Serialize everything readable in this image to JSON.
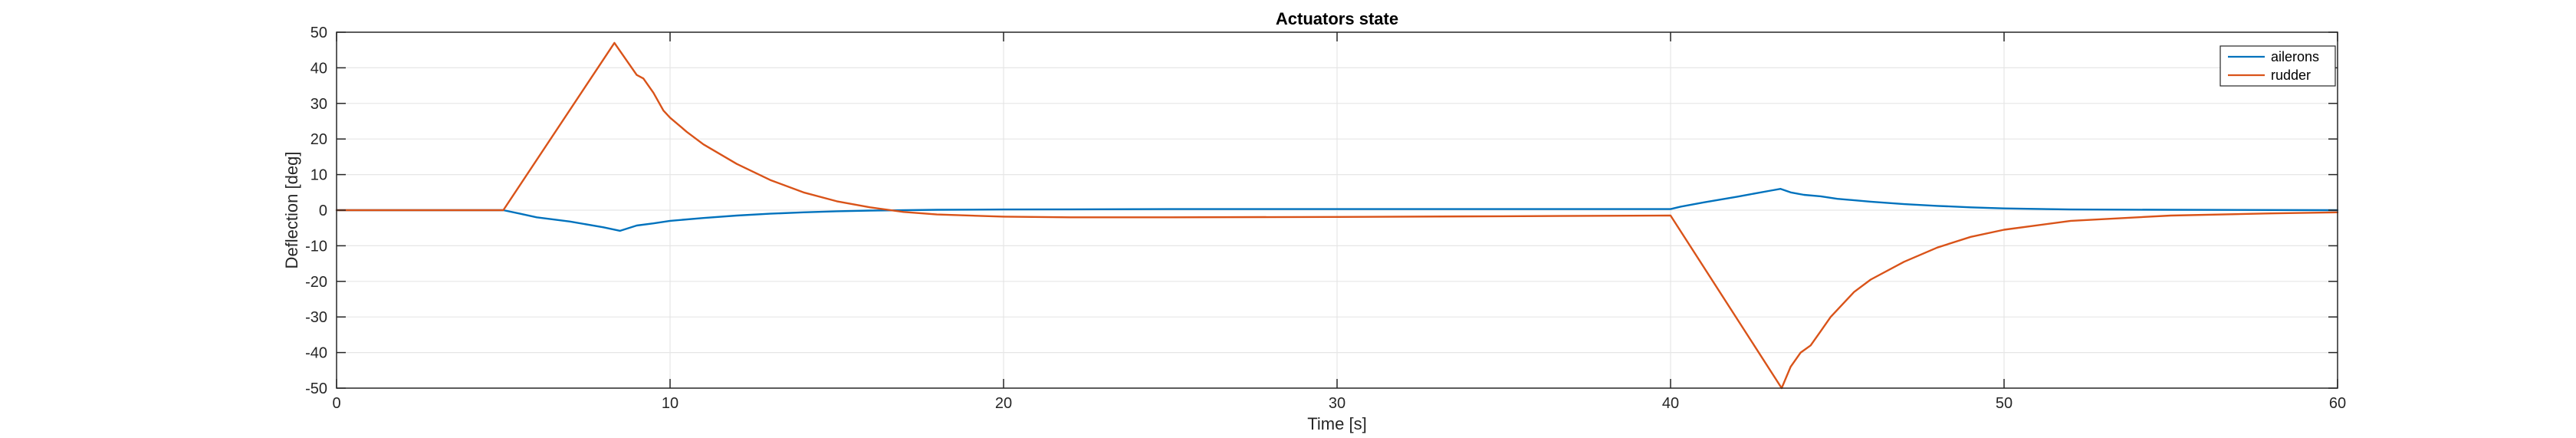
{
  "chart_data": {
    "type": "line",
    "title": "Actuators state",
    "xlabel": "Time [s]",
    "ylabel": "Deflection [deg]",
    "xlim": [
      0,
      60
    ],
    "ylim": [
      -50,
      50
    ],
    "x_ticks": [
      0,
      10,
      20,
      30,
      40,
      50,
      60
    ],
    "y_ticks": [
      -50,
      -40,
      -30,
      -20,
      -10,
      0,
      10,
      20,
      30,
      40,
      50
    ],
    "grid": true,
    "legend_position": "top-right",
    "colors": {
      "ailerons": "#0072BD",
      "rudder": "#D95319",
      "grid": "#e6e6e6",
      "axes": "#262626"
    },
    "series": [
      {
        "name": "ailerons",
        "color": "#0072BD",
        "points": [
          [
            0,
            0
          ],
          [
            5,
            0
          ],
          [
            5.5,
            -1
          ],
          [
            6,
            -2
          ],
          [
            7,
            -3.2
          ],
          [
            8,
            -4.8
          ],
          [
            8.5,
            -5.8
          ],
          [
            8.7,
            -5.2
          ],
          [
            9,
            -4.3
          ],
          [
            9.5,
            -3.7
          ],
          [
            10,
            -3.0
          ],
          [
            11,
            -2.2
          ],
          [
            12,
            -1.5
          ],
          [
            13,
            -1.0
          ],
          [
            14,
            -0.6
          ],
          [
            15,
            -0.3
          ],
          [
            16,
            -0.1
          ],
          [
            18,
            0.1
          ],
          [
            20,
            0.2
          ],
          [
            25,
            0.3
          ],
          [
            30,
            0.3
          ],
          [
            35,
            0.3
          ],
          [
            40,
            0.3
          ],
          [
            40.3,
            1
          ],
          [
            41,
            2.2
          ],
          [
            42,
            3.8
          ],
          [
            43,
            5.5
          ],
          [
            43.3,
            6.0
          ],
          [
            43.6,
            5.0
          ],
          [
            44,
            4.3
          ],
          [
            44.5,
            3.9
          ],
          [
            45,
            3.2
          ],
          [
            46,
            2.4
          ],
          [
            47,
            1.7
          ],
          [
            48,
            1.2
          ],
          [
            49,
            0.8
          ],
          [
            50,
            0.5
          ],
          [
            52,
            0.2
          ],
          [
            55,
            0.1
          ],
          [
            60,
            0
          ]
        ]
      },
      {
        "name": "rudder",
        "color": "#D95319",
        "points": [
          [
            0,
            0
          ],
          [
            5,
            0
          ],
          [
            8.33,
            47
          ],
          [
            8.7,
            42
          ],
          [
            9,
            38
          ],
          [
            9.2,
            37
          ],
          [
            9.5,
            33
          ],
          [
            9.8,
            28
          ],
          [
            10,
            26
          ],
          [
            10.5,
            22
          ],
          [
            11,
            18.5
          ],
          [
            12,
            13
          ],
          [
            13,
            8.5
          ],
          [
            14,
            5
          ],
          [
            15,
            2.5
          ],
          [
            16,
            0.8
          ],
          [
            17,
            -0.5
          ],
          [
            18,
            -1.2
          ],
          [
            20,
            -1.8
          ],
          [
            22,
            -2.0
          ],
          [
            25,
            -2.0
          ],
          [
            30,
            -1.9
          ],
          [
            35,
            -1.7
          ],
          [
            40,
            -1.5
          ],
          [
            43.33,
            -50
          ],
          [
            43.6,
            -44
          ],
          [
            43.9,
            -40
          ],
          [
            44.2,
            -38
          ],
          [
            44.5,
            -34
          ],
          [
            44.8,
            -30
          ],
          [
            45,
            -28
          ],
          [
            45.5,
            -23
          ],
          [
            46,
            -19.5
          ],
          [
            47,
            -14.5
          ],
          [
            48,
            -10.5
          ],
          [
            49,
            -7.5
          ],
          [
            50,
            -5.5
          ],
          [
            52,
            -3
          ],
          [
            55,
            -1.5
          ],
          [
            58,
            -0.9
          ],
          [
            60,
            -0.6
          ]
        ]
      }
    ]
  }
}
